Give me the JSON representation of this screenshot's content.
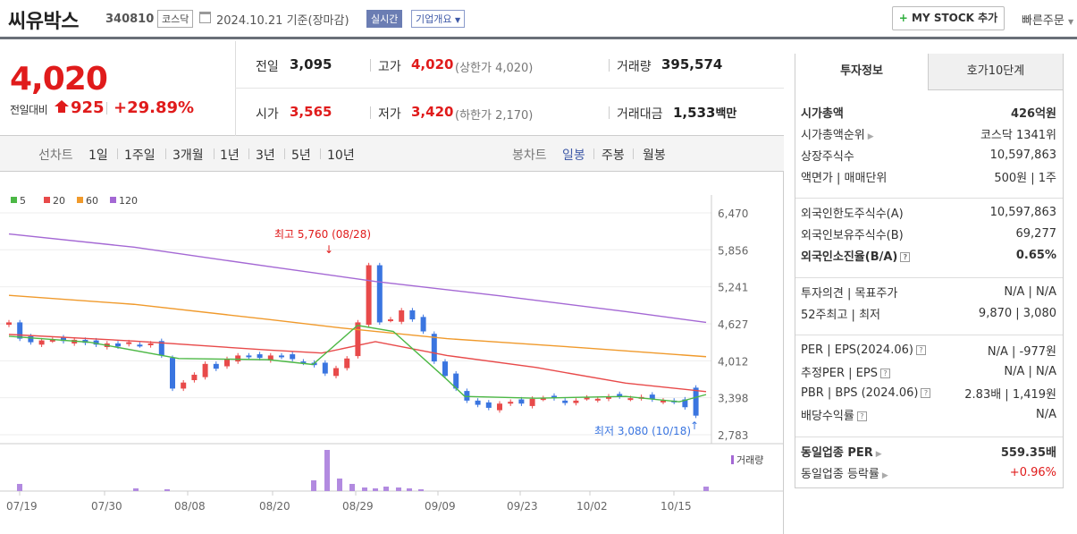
{
  "header": {
    "name": "씨유박스",
    "code": "340810",
    "market": "코스닥",
    "date": "2024.10.21",
    "basis": "기준(장마감)",
    "live": "실시간",
    "corp": "기업개요",
    "mystock": "MY STOCK 추가",
    "quick": "빠른주문"
  },
  "price": {
    "current": "4,020",
    "change_label": "전일대비",
    "change": "925",
    "change_pct": "+29.89%"
  },
  "quote": {
    "prev_label": "전일",
    "prev": "3,095",
    "high_label": "고가",
    "high": "4,020",
    "upper": "(상한가 4,020)",
    "vol_label": "거래량",
    "vol": "395,574",
    "open_label": "시가",
    "open": "3,565",
    "low_label": "저가",
    "low": "3,420",
    "lower": "(하한가 2,170)",
    "amt_label": "거래대금",
    "amt": "1,533",
    "amt_unit": "백만"
  },
  "tabs": {
    "line_label": "선차트",
    "line": [
      "1일",
      "1주일",
      "3개월",
      "1년",
      "3년",
      "5년",
      "10년"
    ],
    "candle_label": "봉차트",
    "candle": [
      "일봉",
      "주봉",
      "월봉"
    ]
  },
  "chart_data": {
    "type": "candlestick",
    "legend": [
      "5",
      "20",
      "60",
      "120"
    ],
    "legend_colors": [
      "#4cb845",
      "#e84a4a",
      "#f09a2c",
      "#a468d4"
    ],
    "y_ticks": [
      "6,470",
      "5,856",
      "5,241",
      "4,627",
      "4,012",
      "3,398",
      "2,783"
    ],
    "ylim": [
      2783,
      6470
    ],
    "x_ticks": [
      "07/19",
      "07/30",
      "08/08",
      "08/20",
      "08/29",
      "09/09",
      "09/23",
      "10/02",
      "10/15"
    ],
    "high_note": "최고 5,760 (08/28)",
    "low_note": "최저 3,080 (10/18)",
    "volume_label": "거래량"
  },
  "side": {
    "tab1": "투자정보",
    "tab2": "호가10단계",
    "rows1": [
      {
        "k": "시가총액",
        "v": "426억원",
        "b": true
      },
      {
        "k": "시가총액순위",
        "v": "코스닥 1341위",
        "arrow": true
      },
      {
        "k": "상장주식수",
        "v": "10,597,863"
      },
      {
        "k": "액면가 | 매매단위",
        "v": "500원 | 1주"
      }
    ],
    "rows2": [
      {
        "k": "외국인한도주식수(A)",
        "v": "10,597,863"
      },
      {
        "k": "외국인보유주식수(B)",
        "v": "69,277"
      },
      {
        "k": "외국인소진율(B/A)",
        "v": "0.65%",
        "b": true,
        "help": true
      }
    ],
    "rows3": [
      {
        "k": "투자의견 | 목표주가",
        "v": "N/A | N/A"
      },
      {
        "k": "52주최고 | 최저",
        "v": "9,870 | 3,080"
      }
    ],
    "rows4": [
      {
        "k": "PER | EPS(2024.06)",
        "v": "N/A | -977원",
        "help": true
      },
      {
        "k": "추정PER | EPS",
        "v": "N/A | N/A",
        "help": true
      },
      {
        "k": "PBR | BPS (2024.06)",
        "v": "2.83배 | 1,419원",
        "help": true
      },
      {
        "k": "배당수익률",
        "v": "N/A",
        "help": true
      }
    ],
    "rows5": [
      {
        "k": "동일업종 PER",
        "v": "559.35배",
        "b": true,
        "arrow": true
      },
      {
        "k": "동일업종 등락률",
        "v": "+0.96%",
        "arrow": true,
        "red": true
      }
    ]
  }
}
